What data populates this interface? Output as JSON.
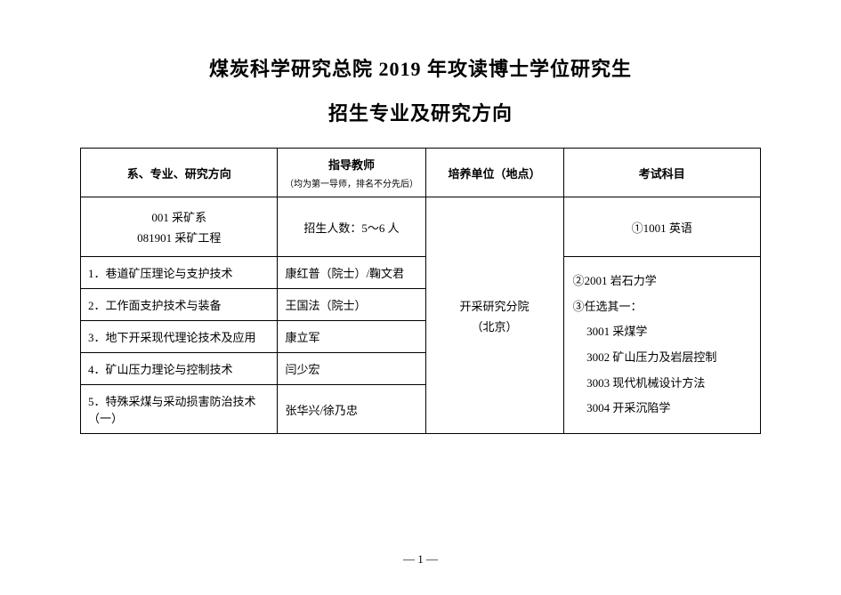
{
  "title": {
    "line1": "煤炭科学研究总院 2019 年攻读博士学位研究生",
    "line2": "招生专业及研究方向"
  },
  "headers": {
    "col1": "系、专业、研究方向",
    "col2_main": "指导教师",
    "col2_sub": "（均为第一导师，排名不分先后）",
    "col3": "培养单位（地点）",
    "col4": "考试科目"
  },
  "dept": {
    "line1": "001 采矿系",
    "line2": "081901 采矿工程"
  },
  "enroll": "招生人数：5～6 人",
  "exam_top": "①1001 英语",
  "rows": [
    {
      "idx": "1．",
      "topic": "巷道矿压理论与支护技术",
      "advisor": "康红普（院士）/鞠文君"
    },
    {
      "idx": "2．",
      "topic": "工作面支护技术与装备",
      "advisor": "王国法（院士）"
    },
    {
      "idx": "3．",
      "topic": "地下开采现代理论技术及应用",
      "advisor": "康立军"
    },
    {
      "idx": "4．",
      "topic": "矿山压力理论与控制技术",
      "advisor": "闫少宏"
    },
    {
      "idx": "5．",
      "topic": "特殊采煤与采动损害防治技术（一）",
      "advisor": "张华兴/徐乃忠"
    }
  ],
  "unit": {
    "line1": "开采研究分院",
    "line2": "（北京）"
  },
  "exam_list": {
    "l1": "②2001 岩石力学",
    "l2": "③任选其一：",
    "l3": "3001 采煤学",
    "l4": "3002 矿山压力及岩层控制",
    "l5": "3003 现代机械设计方法",
    "l6": "3004 开采沉陷学"
  },
  "page_number": "— 1 —"
}
